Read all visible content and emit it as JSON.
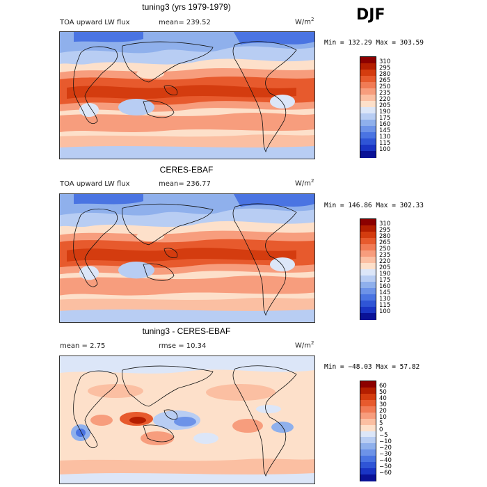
{
  "season": "DJF",
  "units_base": "W/m",
  "units_exp": "2",
  "panels": [
    {
      "title": "tuning3 (yrs 1979-1979)",
      "left_text": "TOA upward LW flux",
      "stat_text": "mean= 239.52",
      "minmax": "Min = 132.29 Max = 303.59",
      "levels": [
        "310",
        "295",
        "280",
        "265",
        "250",
        "235",
        "220",
        "205",
        "190",
        "175",
        "160",
        "145",
        "130",
        "115",
        "100"
      ],
      "colors": [
        "#8c0000",
        "#b41e00",
        "#d43c0f",
        "#e75a2d",
        "#f17b55",
        "#f79d7d",
        "#fbbfa2",
        "#fde0ca",
        "#dce6f8",
        "#b8cdf3",
        "#8fb0ec",
        "#6d93e8",
        "#4a74e2",
        "#2f55d6",
        "#1a35c4",
        "#0a1296"
      ]
    },
    {
      "title": "CERES-EBAF",
      "left_text": "TOA upward LW flux",
      "stat_text": "mean= 236.77",
      "minmax": "Min = 146.86 Max = 302.33",
      "levels": [
        "310",
        "295",
        "280",
        "265",
        "250",
        "235",
        "220",
        "205",
        "190",
        "175",
        "160",
        "145",
        "130",
        "115",
        "100"
      ],
      "colors": [
        "#8c0000",
        "#b41e00",
        "#d43c0f",
        "#e75a2d",
        "#f17b55",
        "#f79d7d",
        "#fbbfa2",
        "#fde0ca",
        "#dce6f8",
        "#b8cdf3",
        "#8fb0ec",
        "#6d93e8",
        "#4a74e2",
        "#2f55d6",
        "#1a35c4",
        "#0a1296"
      ]
    },
    {
      "title": "tuning3 - CERES-EBAF",
      "left_text": "mean =    2.75",
      "stat_text": "rmse =   10.34",
      "minmax": "Min = −48.03 Max =  57.82",
      "levels": [
        "60",
        "50",
        "40",
        "30",
        "20",
        "10",
        "5",
        "0",
        "−5",
        "−10",
        "−20",
        "−30",
        "−40",
        "−50",
        "−60"
      ],
      "colors": [
        "#8c0000",
        "#b41e00",
        "#d43c0f",
        "#e75a2d",
        "#f17b55",
        "#f79d7d",
        "#fbbfa2",
        "#fde0ca",
        "#dce6f8",
        "#b8cdf3",
        "#8fb0ec",
        "#6d93e8",
        "#4a74e2",
        "#2f55d6",
        "#1a35c4",
        "#0a1296"
      ]
    }
  ],
  "chart_data": [
    {
      "type": "heatmap",
      "title": "tuning3 (yrs 1979-1979)",
      "variable": "TOA upward LW flux",
      "units": "W/m2",
      "mean": 239.52,
      "min": 132.29,
      "max": 303.59,
      "levels": [
        100,
        115,
        130,
        145,
        160,
        175,
        190,
        205,
        220,
        235,
        250,
        265,
        280,
        295,
        310
      ]
    },
    {
      "type": "heatmap",
      "title": "CERES-EBAF",
      "variable": "TOA upward LW flux",
      "units": "W/m2",
      "mean": 236.77,
      "min": 146.86,
      "max": 302.33,
      "levels": [
        100,
        115,
        130,
        145,
        160,
        175,
        190,
        205,
        220,
        235,
        250,
        265,
        280,
        295,
        310
      ]
    },
    {
      "type": "heatmap",
      "title": "tuning3 - CERES-EBAF",
      "units": "W/m2",
      "mean": 2.75,
      "rmse": 10.34,
      "min": -48.03,
      "max": 57.82,
      "levels": [
        -60,
        -50,
        -40,
        -30,
        -20,
        -10,
        -5,
        0,
        5,
        10,
        20,
        30,
        40,
        50,
        60
      ]
    }
  ]
}
